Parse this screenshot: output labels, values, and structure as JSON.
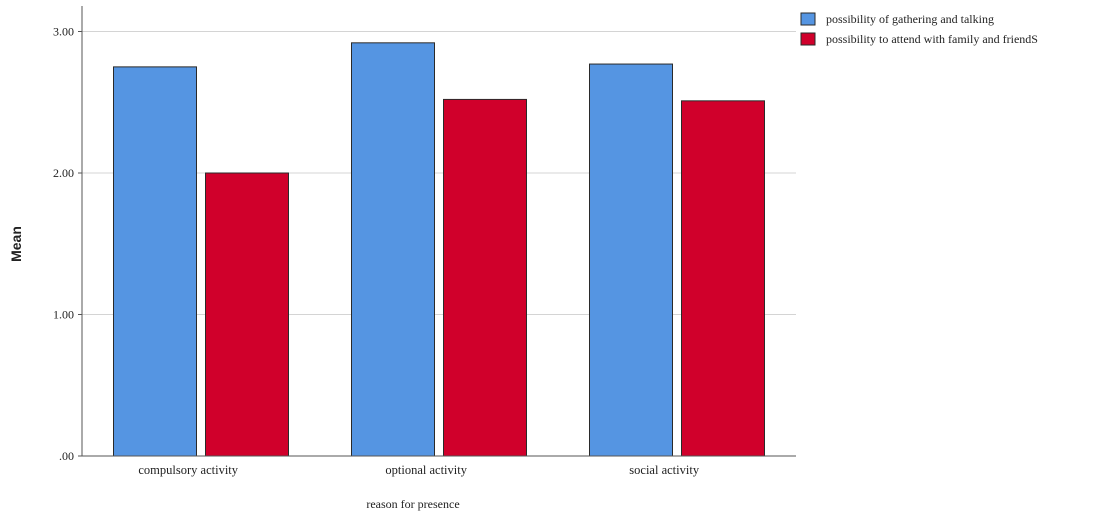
{
  "chart_data": {
    "type": "bar",
    "title": "",
    "xlabel": "reason for presence",
    "ylabel": "Mean",
    "categories": [
      "compulsory activity",
      "optional activity",
      "social activity"
    ],
    "series": [
      {
        "name": "possibility of gathering and talking",
        "color": "#5595E2",
        "values": [
          2.75,
          2.92,
          2.77
        ]
      },
      {
        "name": "possibility to attend with family and friendS",
        "color": "#D0002B",
        "values": [
          2.0,
          2.52,
          2.51
        ]
      }
    ],
    "ylim": [
      0,
      3.2
    ],
    "yticks": [
      0,
      1,
      2,
      3
    ],
    "ytick_labels": [
      ".00",
      "1.00",
      "2.00",
      "3.00"
    ],
    "grid": true,
    "legend_position": "top-right"
  }
}
